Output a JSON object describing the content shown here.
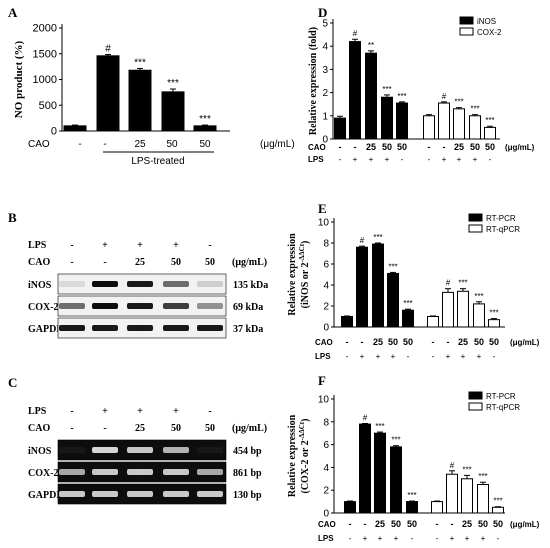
{
  "panels": {
    "A": "A",
    "B": "B",
    "C": "C",
    "D": "D",
    "E": "E",
    "F": "F"
  },
  "colors": {
    "black": "#000000",
    "white": "#ffffff",
    "gel": "#0d0d0d",
    "band": "#e8e8e8"
  },
  "treatment_rows": {
    "cao_label": "CAO",
    "lps_label": "LPS",
    "unit": "(μg/mL)",
    "A_cao": [
      "-",
      "-",
      "25",
      "50",
      "50"
    ],
    "A_lps_group": "LPS-treated",
    "DEF_cao": [
      "-",
      "-",
      "25",
      "50",
      "50",
      "-",
      "-",
      "25",
      "50",
      "50"
    ],
    "DEF_lps": [
      "-",
      "+",
      "+",
      "+",
      "-",
      "-",
      "+",
      "+",
      "+",
      "-"
    ],
    "blot_lps": [
      "-",
      "+",
      "+",
      "+",
      "-"
    ],
    "blot_cao": [
      "-",
      "-",
      "25",
      "50",
      "50"
    ]
  },
  "blots": {
    "B": {
      "rows": [
        {
          "name": "iNOS",
          "size": "135 kDa"
        },
        {
          "name": "COX-2",
          "size": "69 kDa"
        },
        {
          "name": "GAPDH",
          "size": "37 kDa"
        }
      ]
    },
    "C": {
      "rows": [
        {
          "name": "iNOS",
          "size": "454 bp"
        },
        {
          "name": "COX-2",
          "size": "861 bp"
        },
        {
          "name": "GAPDH",
          "size": "130 bp"
        }
      ]
    }
  },
  "chart_data": [
    {
      "panel": "A",
      "type": "bar",
      "ylabel": "NO product (%)",
      "ylim": [
        0,
        2000
      ],
      "yticks": [
        "0",
        "500",
        "1000",
        "1500",
        "2000"
      ],
      "categories": [
        "-",
        "-",
        "25",
        "50",
        "50"
      ],
      "values": [
        100,
        1460,
        1180,
        760,
        100
      ],
      "errors": [
        15,
        25,
        35,
        55,
        15
      ],
      "sig": [
        "",
        "#",
        "***",
        "***",
        "***"
      ]
    },
    {
      "panel": "D",
      "type": "bar",
      "ylabel": "Relative expression (fold)",
      "ylim": [
        0,
        5
      ],
      "yticks": [
        "0",
        "1",
        "2",
        "3",
        "4",
        "5"
      ],
      "series": [
        {
          "name": "iNOS",
          "values": [
            0.9,
            4.2,
            3.7,
            1.8,
            1.55
          ],
          "errors": [
            0.08,
            0.1,
            0.1,
            0.1,
            0.05
          ],
          "sig": [
            "",
            "#",
            "**",
            "***",
            "***"
          ]
        },
        {
          "name": "COX-2",
          "values": [
            1.0,
            1.55,
            1.3,
            1.0,
            0.5
          ],
          "errors": [
            0.05,
            0.05,
            0.05,
            0.05,
            0.05
          ],
          "sig": [
            "",
            "#",
            "***",
            "***",
            "***"
          ]
        }
      ]
    },
    {
      "panel": "E",
      "type": "bar",
      "ylabel": "Relative expression",
      "ylabel2": "(iNOS or 2",
      "ylabel_sup": "-ΔΔCt",
      "ylabel_end": ")",
      "ylim": [
        0,
        10
      ],
      "yticks": [
        "0",
        "2",
        "4",
        "6",
        "8",
        "10"
      ],
      "series": [
        {
          "name": "RT-PCR",
          "values": [
            1.0,
            7.6,
            7.9,
            5.1,
            1.6
          ],
          "errors": [
            0.05,
            0.1,
            0.1,
            0.1,
            0.1
          ],
          "sig": [
            "",
            "#",
            "***",
            "***",
            "***"
          ]
        },
        {
          "name": "RT-qPCR",
          "values": [
            1.0,
            3.3,
            3.4,
            2.2,
            0.7
          ],
          "errors": [
            0.05,
            0.35,
            0.25,
            0.2,
            0.1
          ],
          "sig": [
            "",
            "#",
            "***",
            "***",
            "***"
          ]
        }
      ]
    },
    {
      "panel": "F",
      "type": "bar",
      "ylabel": "Relative expression",
      "ylabel2": "(COX-2 or 2",
      "ylabel_sup": "-ΔΔCt",
      "ylabel_end": ")",
      "ylim": [
        0,
        10
      ],
      "yticks": [
        "0",
        "2",
        "4",
        "6",
        "8",
        "10"
      ],
      "series": [
        {
          "name": "RT-PCR",
          "values": [
            1.0,
            7.8,
            7.0,
            5.8,
            1.0
          ],
          "errors": [
            0.05,
            0.05,
            0.1,
            0.1,
            0.05
          ],
          "sig": [
            "",
            "#",
            "***",
            "***",
            "***"
          ]
        },
        {
          "name": "RT-qPCR",
          "values": [
            1.0,
            3.4,
            3.0,
            2.5,
            0.5
          ],
          "errors": [
            0.05,
            0.3,
            0.3,
            0.2,
            0.05
          ],
          "sig": [
            "",
            "#",
            "***",
            "***",
            "***"
          ]
        }
      ]
    }
  ]
}
